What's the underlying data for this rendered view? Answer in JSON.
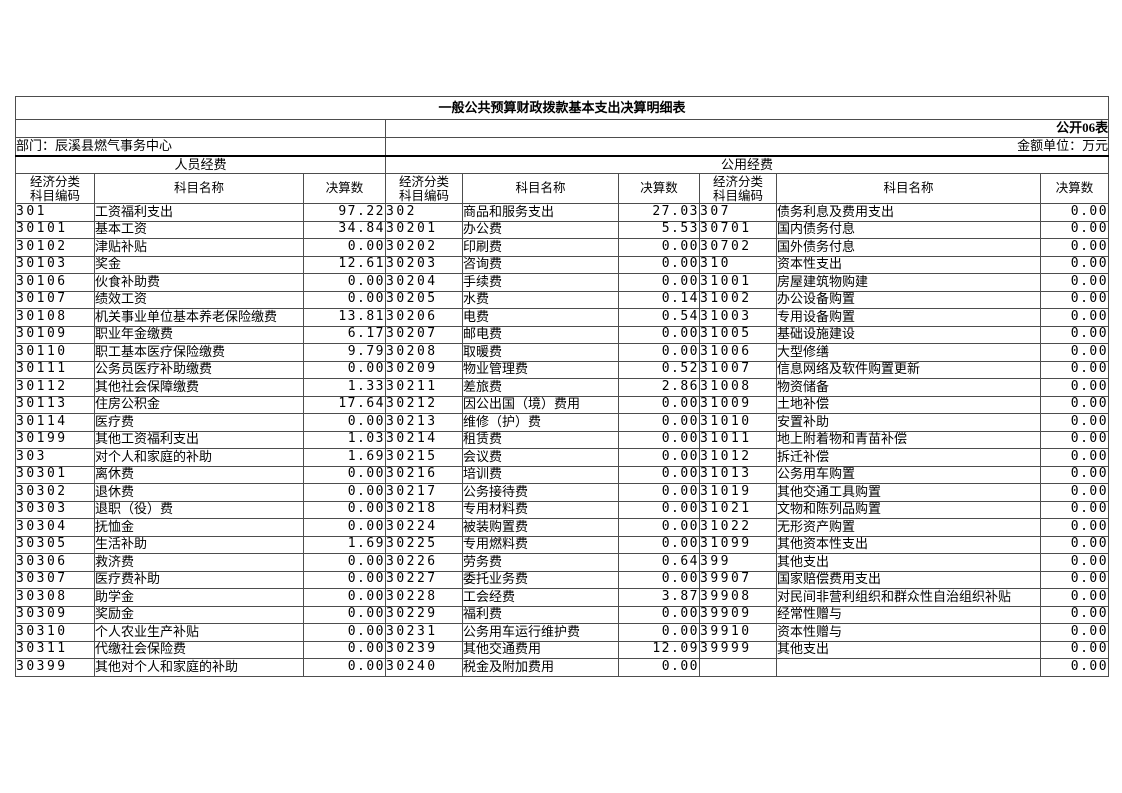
{
  "header": {
    "title": "一般公共预算财政拨款基本支出决算明细表",
    "sheet_label": "公开06表",
    "department_label": "部门：辰溪县燃气事务中心",
    "unit_label": "金额单位：万元"
  },
  "groups": {
    "personnel": "人员经费",
    "public": "公用经费"
  },
  "columns": {
    "code_line1": "经济分类",
    "code_line2": "科目编码",
    "name": "科目名称",
    "amount": "决算数"
  },
  "rows": [
    [
      "301",
      "工资福利支出",
      "97.22",
      "302",
      "商品和服务支出",
      "27.03",
      "307",
      "债务利息及费用支出",
      "0.00"
    ],
    [
      "30101",
      "基本工资",
      "34.84",
      "30201",
      "办公费",
      "5.53",
      "30701",
      "国内债务付息",
      "0.00"
    ],
    [
      "30102",
      "津贴补贴",
      "0.00",
      "30202",
      "印刷费",
      "0.00",
      "30702",
      "国外债务付息",
      "0.00"
    ],
    [
      "30103",
      "奖金",
      "12.61",
      "30203",
      "咨询费",
      "0.00",
      "310",
      "资本性支出",
      "0.00"
    ],
    [
      "30106",
      "伙食补助费",
      "0.00",
      "30204",
      "手续费",
      "0.00",
      "31001",
      "房屋建筑物购建",
      "0.00"
    ],
    [
      "30107",
      "绩效工资",
      "0.00",
      "30205",
      "水费",
      "0.14",
      "31002",
      "办公设备购置",
      "0.00"
    ],
    [
      "30108",
      "机关事业单位基本养老保险缴费",
      "13.81",
      "30206",
      "电费",
      "0.54",
      "31003",
      "专用设备购置",
      "0.00"
    ],
    [
      "30109",
      "职业年金缴费",
      "6.17",
      "30207",
      "邮电费",
      "0.00",
      "31005",
      "基础设施建设",
      "0.00"
    ],
    [
      "30110",
      "职工基本医疗保险缴费",
      "9.79",
      "30208",
      "取暖费",
      "0.00",
      "31006",
      "大型修缮",
      "0.00"
    ],
    [
      "30111",
      "公务员医疗补助缴费",
      "0.00",
      "30209",
      "物业管理费",
      "0.52",
      "31007",
      "信息网络及软件购置更新",
      "0.00"
    ],
    [
      "30112",
      "其他社会保障缴费",
      "1.33",
      "30211",
      "差旅费",
      "2.86",
      "31008",
      "物资储备",
      "0.00"
    ],
    [
      "30113",
      "住房公积金",
      "17.64",
      "30212",
      "因公出国（境）费用",
      "0.00",
      "31009",
      "土地补偿",
      "0.00"
    ],
    [
      "30114",
      "医疗费",
      "0.00",
      "30213",
      "维修（护）费",
      "0.00",
      "31010",
      "安置补助",
      "0.00"
    ],
    [
      "30199",
      "其他工资福利支出",
      "1.03",
      "30214",
      "租赁费",
      "0.00",
      "31011",
      "地上附着物和青苗补偿",
      "0.00"
    ],
    [
      "303",
      "对个人和家庭的补助",
      "1.69",
      "30215",
      "会议费",
      "0.00",
      "31012",
      "拆迁补偿",
      "0.00"
    ],
    [
      "30301",
      "离休费",
      "0.00",
      "30216",
      "培训费",
      "0.00",
      "31013",
      "公务用车购置",
      "0.00"
    ],
    [
      "30302",
      "退休费",
      "0.00",
      "30217",
      "公务接待费",
      "0.00",
      "31019",
      "其他交通工具购置",
      "0.00"
    ],
    [
      "30303",
      "退职（役）费",
      "0.00",
      "30218",
      "专用材料费",
      "0.00",
      "31021",
      "文物和陈列品购置",
      "0.00"
    ],
    [
      "30304",
      "抚恤金",
      "0.00",
      "30224",
      "被装购置费",
      "0.00",
      "31022",
      "无形资产购置",
      "0.00"
    ],
    [
      "30305",
      "生活补助",
      "1.69",
      "30225",
      "专用燃料费",
      "0.00",
      "31099",
      "其他资本性支出",
      "0.00"
    ],
    [
      "30306",
      "救济费",
      "0.00",
      "30226",
      "劳务费",
      "0.64",
      "399",
      "其他支出",
      "0.00"
    ],
    [
      "30307",
      "医疗费补助",
      "0.00",
      "30227",
      "委托业务费",
      "0.00",
      "39907",
      "国家赔偿费用支出",
      "0.00"
    ],
    [
      "30308",
      "助学金",
      "0.00",
      "30228",
      "工会经费",
      "3.87",
      "39908",
      "对民间非营利组织和群众性自治组织补贴",
      "0.00"
    ],
    [
      "30309",
      "奖励金",
      "0.00",
      "30229",
      "福利费",
      "0.00",
      "39909",
      "经常性赠与",
      "0.00"
    ],
    [
      "30310",
      "个人农业生产补贴",
      "0.00",
      "30231",
      "公务用车运行维护费",
      "0.00",
      "39910",
      "资本性赠与",
      "0.00"
    ],
    [
      "30311",
      "代缴社会保险费",
      "0.00",
      "30239",
      "其他交通费用",
      "12.09",
      "39999",
      "其他支出",
      "0.00"
    ],
    [
      "30399",
      "其他对个人和家庭的补助",
      "0.00",
      "30240",
      "税金及附加费用",
      "0.00",
      "",
      "",
      "0.00"
    ]
  ]
}
